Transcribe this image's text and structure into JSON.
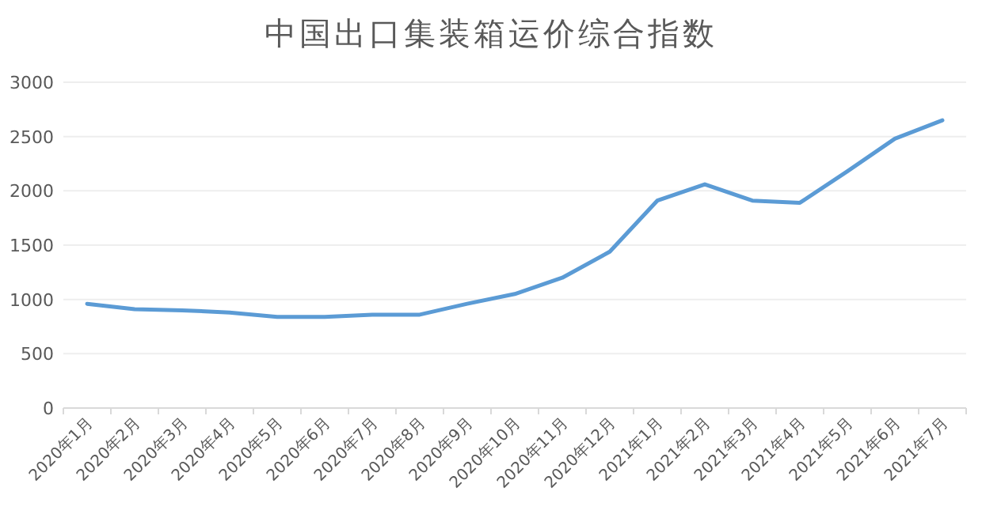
{
  "chart_data": {
    "type": "line",
    "title": "中国出口集装箱运价综合指数",
    "categories": [
      "2020年1月",
      "2020年2月",
      "2020年3月",
      "2020年4月",
      "2020年5月",
      "2020年6月",
      "2020年7月",
      "2020年8月",
      "2020年9月",
      "2020年10月",
      "2020年11月",
      "2020年12月",
      "2021年1月",
      "2021年2月",
      "2021年3月",
      "2021年4月",
      "2021年5月",
      "2021年6月",
      "2021年7月"
    ],
    "series": [
      {
        "color": "#5b9bd5",
        "values": [
          960,
          910,
          900,
          880,
          840,
          840,
          860,
          860,
          960,
          1050,
          1200,
          1440,
          1910,
          2060,
          1910,
          1890,
          2180,
          2480,
          2650
        ]
      }
    ],
    "ylim": [
      0,
      3000
    ],
    "yticks": [
      0,
      500,
      1000,
      1500,
      2000,
      2500,
      3000
    ],
    "grid": "y",
    "marker": "none",
    "line_style": "solid"
  }
}
